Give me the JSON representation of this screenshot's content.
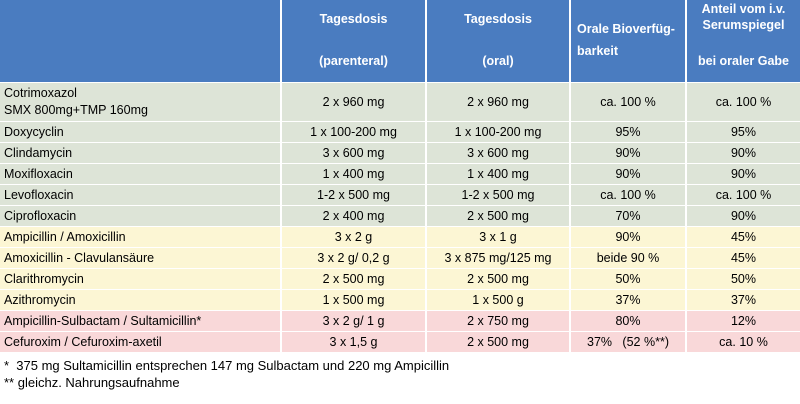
{
  "colors": {
    "header": "#4a7cc0",
    "green": "#dde4d7",
    "yellow": "#fcf6d4",
    "pink": "#f9d8d9"
  },
  "headers": {
    "col1_line1": "Tagesdosis",
    "col1_line2": "(parenteral)",
    "col2_line1": "Tagesdosis",
    "col2_line2": "(oral)",
    "col3_line1": "Orale Bioverfüg-",
    "col3_line2": "barkeit",
    "col4_line1": "Anteil vom i.v.",
    "col4_line2": "Serumspiegel",
    "col4_line3": "bei oraler Gabe"
  },
  "rows": [
    {
      "name_line1": "Cotrimoxazol",
      "name_line2": "SMX 800mg+TMP 160mg",
      "parenteral": "2 x 960 mg",
      "oral": "2 x 960 mg",
      "bio": "ca. 100 %",
      "anteil": "ca. 100 %",
      "group": "green"
    },
    {
      "name": "Doxycyclin",
      "parenteral": "1 x 100-200 mg",
      "oral": "1 x 100-200 mg",
      "bio": "95%",
      "anteil": "95%",
      "group": "green"
    },
    {
      "name": "Clindamycin",
      "parenteral": "3 x 600 mg",
      "oral": "3 x 600 mg",
      "bio": "90%",
      "anteil": "90%",
      "group": "green"
    },
    {
      "name": "Moxifloxacin",
      "parenteral": "1 x 400 mg",
      "oral": "1 x 400 mg",
      "bio": "90%",
      "anteil": "90%",
      "group": "green"
    },
    {
      "name": "Levofloxacin",
      "parenteral": "1-2 x 500 mg",
      "oral": "1-2 x 500 mg",
      "bio": "ca. 100 %",
      "anteil": "ca. 100 %",
      "group": "green"
    },
    {
      "name": "Ciprofloxacin",
      "parenteral": "2 x 400 mg",
      "oral": "2 x 500 mg",
      "bio": "70%",
      "anteil": "90%",
      "group": "green"
    },
    {
      "name": "Ampicillin / Amoxicillin",
      "parenteral": "3 x 2 g",
      "oral": "3 x 1 g",
      "bio": "90%",
      "anteil": "45%",
      "group": "yellow"
    },
    {
      "name": "Amoxicillin - Clavulansäure",
      "parenteral": "3 x 2 g/ 0,2 g",
      "oral": "3 x 875 mg/125 mg",
      "bio": "beide 90 %",
      "anteil": "45%",
      "group": "yellow"
    },
    {
      "name": "Clarithromycin",
      "parenteral": "2 x 500 mg",
      "oral": "2 x 500 mg",
      "bio": "50%",
      "anteil": "50%",
      "group": "yellow"
    },
    {
      "name": "Azithromycin",
      "parenteral": "1 x 500 mg",
      "oral": "1 x 500 g",
      "bio": "37%",
      "anteil": "37%",
      "group": "yellow"
    },
    {
      "name": "Ampicillin-Sulbactam / Sultamicillin*",
      "parenteral": "3 x 2 g/ 1 g",
      "oral": "2 x 750 mg",
      "bio": "80%",
      "anteil": "12%",
      "group": "pink"
    },
    {
      "name": "Cefuroxim / Cefuroxim-axetil",
      "parenteral": "3 x 1,5 g",
      "oral": "2 x 500 mg",
      "bio": "37%   (52 %**)",
      "anteil": "ca. 10 %",
      "group": "pink"
    }
  ],
  "footnotes": {
    "note1": "*  375 mg Sultamicillin entsprechen 147 mg Sulbactam und 220 mg Ampicillin",
    "note2": "** gleichz. Nahrungsaufnahme"
  }
}
